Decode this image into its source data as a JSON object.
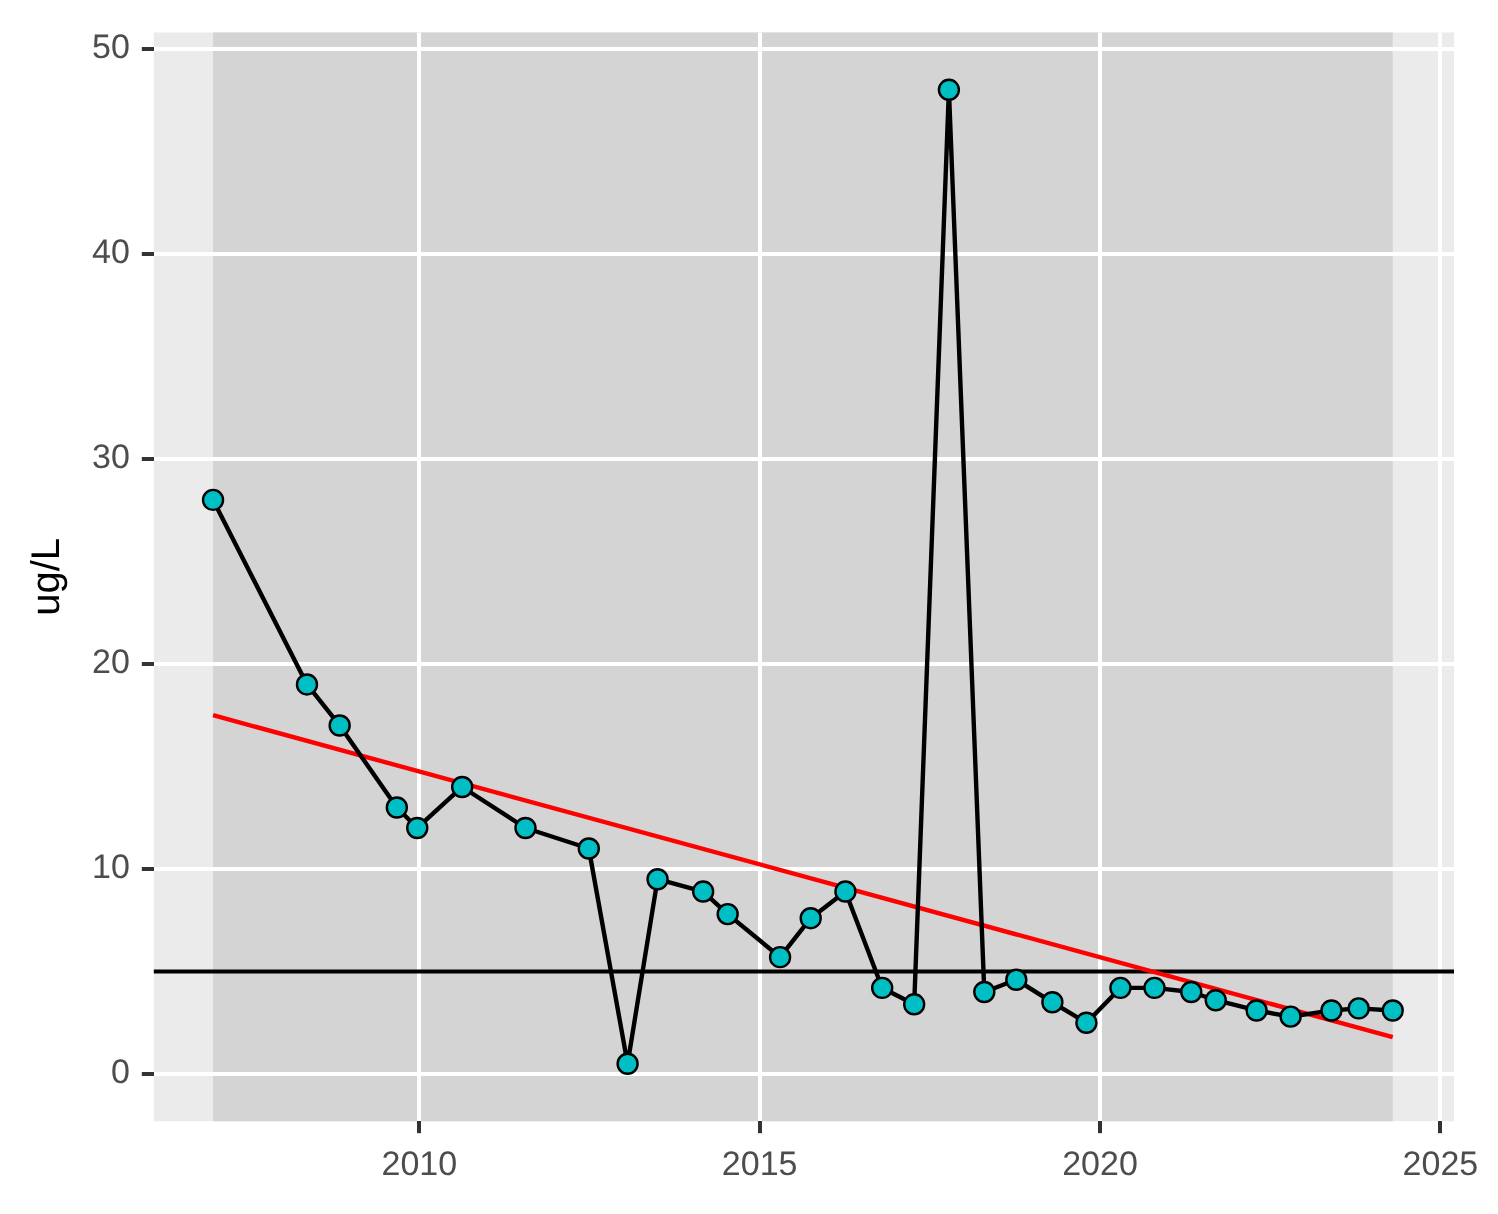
{
  "chart_data": {
    "type": "line",
    "ylabel": "ug/L",
    "marker": "circle",
    "grid": true,
    "legend": false,
    "xlim": [
      2006.1,
      2025.2
    ],
    "xticks": [
      2010,
      2015,
      2020,
      2025
    ],
    "ylim": [
      -2.3,
      50.8
    ],
    "yticks": [
      0,
      10,
      20,
      30,
      40,
      50
    ],
    "series": [
      {
        "color": "#00bfc4",
        "x": [
          2006.97,
          2008.35,
          2008.83,
          2009.67,
          2009.97,
          2010.63,
          2011.56,
          2012.49,
          2013.06,
          2013.5,
          2014.17,
          2014.53,
          2015.3,
          2015.75,
          2016.26,
          2016.8,
          2017.27,
          2017.78,
          2018.3,
          2018.77,
          2019.3,
          2019.8,
          2020.3,
          2020.8,
          2021.34,
          2021.7,
          2022.3,
          2022.8,
          2023.4,
          2023.8,
          2024.3
        ],
        "values": [
          28,
          19,
          17,
          13,
          12,
          14,
          12,
          11,
          0.5,
          9.5,
          8.9,
          7.8,
          5.7,
          7.6,
          8.9,
          4.2,
          3.4,
          48,
          4.0,
          4.6,
          3.5,
          2.5,
          4.2,
          4.2,
          4.0,
          3.6,
          3.1,
          2.8,
          3.1,
          3.2,
          3.1
        ]
      },
      {
        "type": "line",
        "color": "#ff0000",
        "marker": "none",
        "x": [
          2006.97,
          2024.3
        ],
        "values": [
          17.5,
          1.8
        ]
      }
    ],
    "ref_lines": [
      {
        "axis": "y",
        "value": 5,
        "color": "#000000"
      }
    ],
    "bands": [
      {
        "axis": "x",
        "from": 2006.97,
        "to": 2024.3,
        "color": "#d4d4d4"
      }
    ]
  }
}
